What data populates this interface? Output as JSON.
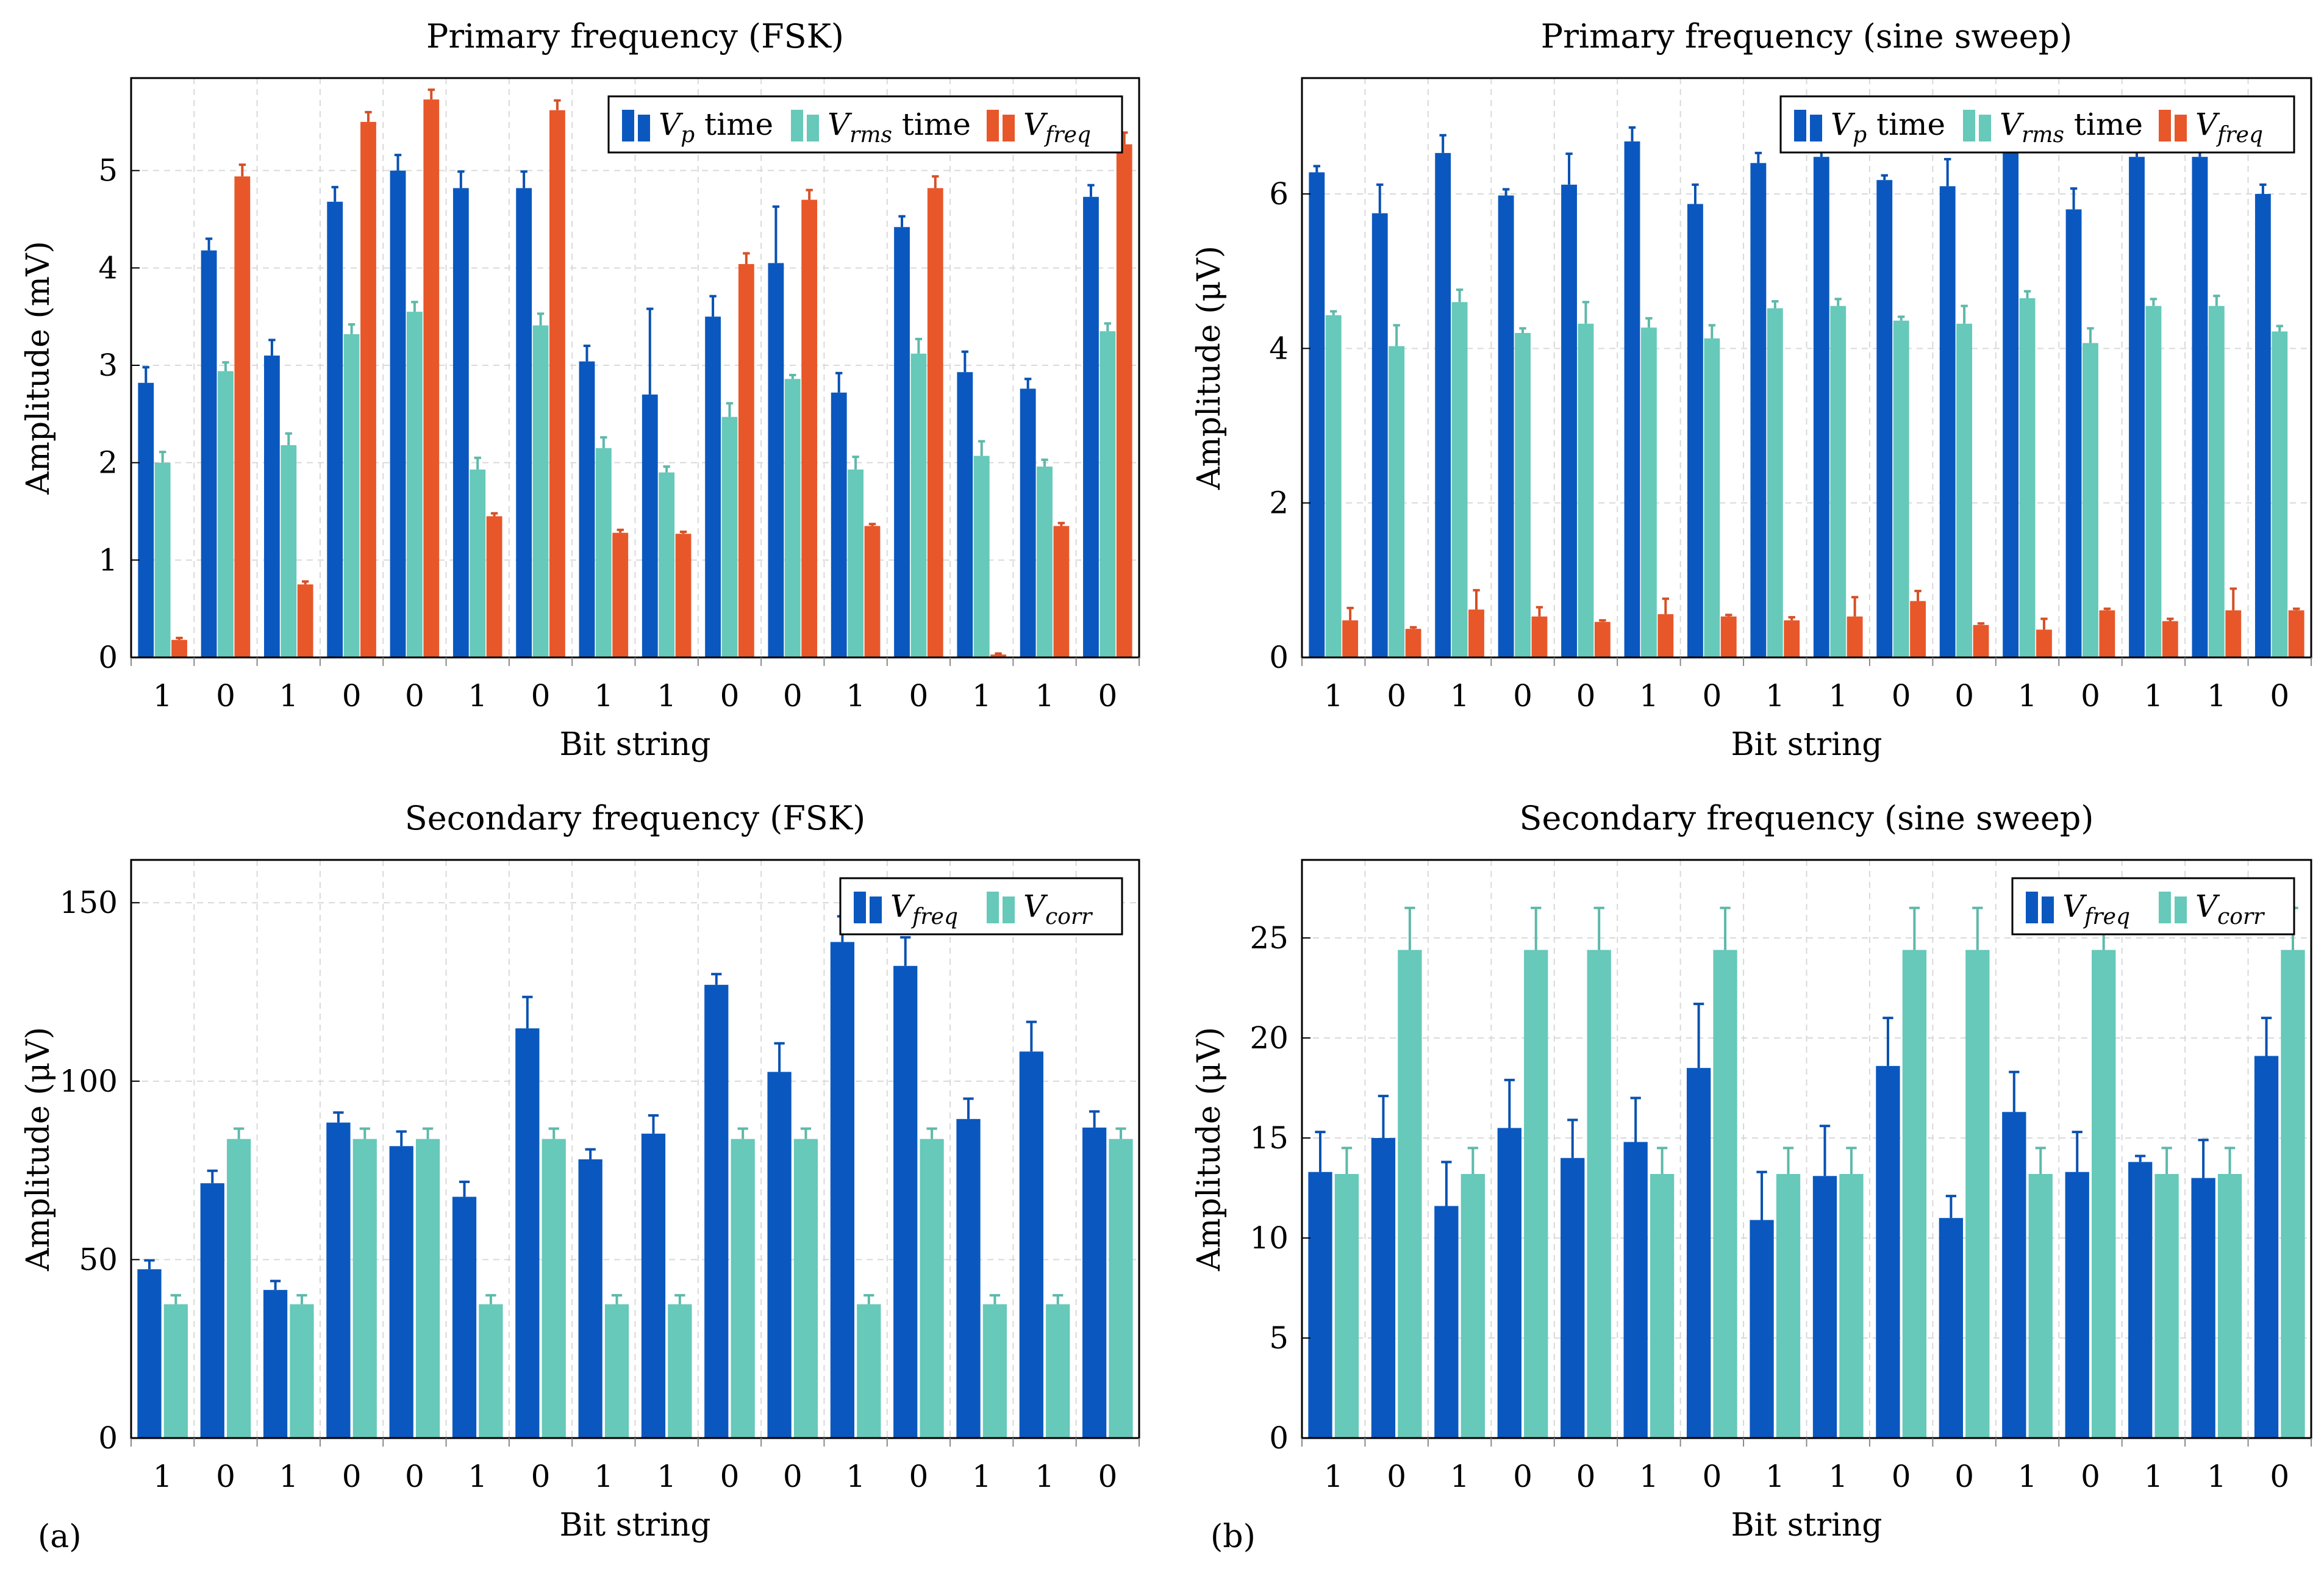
{
  "panel_labels": {
    "a": "(a)",
    "b": "(b)"
  },
  "colors": {
    "vp": "#0a58bf",
    "vrms": "#66c9b9",
    "vfreq_red": "#e8572a",
    "vfreq_blue": "#0a58bf",
    "vcorr": "#66c9b9"
  },
  "chart_data": [
    {
      "type": "bar",
      "title": "Primary frequency (FSK)",
      "xlabel": "Bit string",
      "ylabel": "Amplitude (mV)",
      "ylim": [
        0,
        5.95
      ],
      "yticks": [
        0,
        1,
        2,
        3,
        4,
        5
      ],
      "grid": true,
      "legend_position": "top-right",
      "categories": [
        "1",
        "0",
        "1",
        "0",
        "0",
        "1",
        "0",
        "1",
        "1",
        "0",
        "0",
        "1",
        "0",
        "1",
        "1",
        "0"
      ],
      "series": [
        {
          "name": "Vp time",
          "legend_main": "V",
          "legend_sub": "p",
          "legend_suffix": " time",
          "color_key": "vp",
          "values": [
            2.82,
            4.18,
            3.1,
            4.68,
            5.0,
            4.82,
            4.82,
            3.04,
            2.7,
            3.5,
            4.05,
            2.72,
            4.42,
            2.93,
            2.76,
            4.73
          ],
          "errors": [
            0.16,
            0.12,
            0.16,
            0.15,
            0.16,
            0.17,
            0.17,
            0.16,
            0.88,
            0.21,
            0.58,
            0.2,
            0.11,
            0.21,
            0.1,
            0.12
          ]
        },
        {
          "name": "Vrms time",
          "legend_main": "V",
          "legend_sub": "rms",
          "legend_suffix": " time",
          "color_key": "vrms",
          "values": [
            2.0,
            2.94,
            2.18,
            3.32,
            3.55,
            1.93,
            3.41,
            2.15,
            1.9,
            2.47,
            2.86,
            1.93,
            3.12,
            2.07,
            1.96,
            3.35
          ],
          "errors": [
            0.11,
            0.09,
            0.12,
            0.1,
            0.1,
            0.12,
            0.12,
            0.11,
            0.06,
            0.14,
            0.04,
            0.13,
            0.15,
            0.15,
            0.07,
            0.08
          ]
        },
        {
          "name": "Vfreq",
          "legend_main": "V",
          "legend_sub": "freq",
          "legend_suffix": "",
          "color_key": "vfreq_red",
          "values": [
            0.18,
            4.94,
            0.75,
            5.5,
            5.73,
            1.45,
            5.62,
            1.28,
            1.27,
            4.04,
            4.7,
            1.35,
            4.82,
            0.03,
            1.35,
            5.27
          ],
          "errors": [
            0.02,
            0.12,
            0.03,
            0.1,
            0.1,
            0.03,
            0.1,
            0.03,
            0.02,
            0.11,
            0.1,
            0.02,
            0.12,
            0.01,
            0.03,
            0.12
          ]
        }
      ]
    },
    {
      "type": "bar",
      "title": "Primary frequency (sine sweep)",
      "xlabel": "Bit string",
      "ylabel": "Amplitude (μV)",
      "ylim": [
        0,
        7.5
      ],
      "yticks": [
        0,
        2,
        4,
        6
      ],
      "grid": true,
      "legend_position": "top-right",
      "categories": [
        "1",
        "0",
        "1",
        "0",
        "0",
        "1",
        "0",
        "1",
        "1",
        "0",
        "0",
        "1",
        "0",
        "1",
        "1",
        "0"
      ],
      "series": [
        {
          "name": "Vp time",
          "legend_main": "V",
          "legend_sub": "p",
          "legend_suffix": " time",
          "color_key": "vp",
          "values": [
            6.28,
            5.75,
            6.53,
            5.98,
            6.12,
            6.68,
            5.87,
            6.4,
            6.48,
            6.18,
            6.1,
            6.6,
            5.8,
            6.48,
            6.48,
            6.0
          ],
          "errors": [
            0.08,
            0.37,
            0.23,
            0.08,
            0.4,
            0.18,
            0.25,
            0.13,
            0.12,
            0.06,
            0.35,
            0.13,
            0.27,
            0.13,
            0.13,
            0.12
          ]
        },
        {
          "name": "Vrms time",
          "legend_main": "V",
          "legend_sub": "rms",
          "legend_suffix": " time",
          "color_key": "vrms",
          "values": [
            4.43,
            4.03,
            4.6,
            4.2,
            4.32,
            4.27,
            4.13,
            4.52,
            4.55,
            4.36,
            4.32,
            4.65,
            4.07,
            4.55,
            4.55,
            4.22
          ],
          "errors": [
            0.05,
            0.27,
            0.16,
            0.06,
            0.28,
            0.12,
            0.17,
            0.09,
            0.09,
            0.05,
            0.23,
            0.09,
            0.19,
            0.09,
            0.13,
            0.07
          ]
        },
        {
          "name": "Vfreq",
          "legend_main": "V",
          "legend_sub": "freq",
          "legend_suffix": "",
          "color_key": "vfreq_red",
          "values": [
            0.48,
            0.37,
            0.62,
            0.53,
            0.46,
            0.56,
            0.53,
            0.48,
            0.53,
            0.73,
            0.42,
            0.36,
            0.61,
            0.47,
            0.61,
            0.61
          ],
          "errors": [
            0.16,
            0.02,
            0.25,
            0.12,
            0.02,
            0.2,
            0.02,
            0.04,
            0.25,
            0.13,
            0.02,
            0.14,
            0.02,
            0.03,
            0.28,
            0.02
          ]
        }
      ]
    },
    {
      "type": "bar",
      "title": "Secondary frequency (FSK)",
      "xlabel": "Bit string",
      "ylabel": "Amplitude (μV)",
      "ylim": [
        0,
        162
      ],
      "yticks": [
        0,
        50,
        100,
        150
      ],
      "grid": true,
      "legend_position": "top-right",
      "categories": [
        "1",
        "0",
        "1",
        "0",
        "0",
        "1",
        "0",
        "1",
        "1",
        "0",
        "0",
        "1",
        "0",
        "1",
        "1",
        "0"
      ],
      "series": [
        {
          "name": "Vfreq",
          "legend_main": "V",
          "legend_sub": "freq",
          "legend_suffix": "",
          "color_key": "vfreq_blue",
          "values": [
            47.3,
            71.4,
            41.5,
            88.4,
            81.8,
            67.6,
            114.8,
            78.1,
            85.3,
            127.0,
            102.6,
            139.0,
            132.3,
            89.4,
            108.3,
            87.0
          ],
          "errors": [
            2.5,
            3.5,
            2.5,
            2.8,
            4.1,
            4.2,
            8.8,
            2.8,
            5.1,
            3.0,
            8.0,
            7.2,
            8.0,
            5.7,
            8.3,
            4.5
          ]
        },
        {
          "name": "Vcorr",
          "legend_main": "V",
          "legend_sub": "corr",
          "legend_suffix": "",
          "color_key": "vcorr",
          "values": [
            37.5,
            83.8,
            37.5,
            83.8,
            83.8,
            37.5,
            83.8,
            37.5,
            37.5,
            83.8,
            83.8,
            37.5,
            83.8,
            37.5,
            37.5,
            83.8
          ],
          "errors": [
            2.5,
            2.9,
            2.5,
            2.9,
            2.9,
            2.5,
            2.9,
            2.5,
            2.5,
            2.9,
            2.9,
            2.5,
            2.9,
            2.5,
            2.5,
            2.9
          ]
        }
      ]
    },
    {
      "type": "bar",
      "title": "Secondary frequency (sine sweep)",
      "xlabel": "Bit string",
      "ylabel": "Amplitude (μV)",
      "ylim": [
        0,
        28.9
      ],
      "yticks": [
        0,
        5,
        10,
        15,
        20,
        25
      ],
      "grid": true,
      "legend_position": "top-right",
      "categories": [
        "1",
        "0",
        "1",
        "0",
        "0",
        "1",
        "0",
        "1",
        "1",
        "0",
        "0",
        "1",
        "0",
        "1",
        "1",
        "0"
      ],
      "series": [
        {
          "name": "Vfreq",
          "legend_main": "V",
          "legend_sub": "freq",
          "legend_suffix": "",
          "color_key": "vfreq_blue",
          "values": [
            13.3,
            15.0,
            11.6,
            15.5,
            14.0,
            14.8,
            18.5,
            10.9,
            13.1,
            18.6,
            11.0,
            16.3,
            13.3,
            13.8,
            13.0,
            19.1
          ],
          "errors": [
            2.0,
            2.1,
            2.2,
            2.4,
            1.9,
            2.2,
            3.2,
            2.4,
            2.5,
            2.4,
            1.1,
            2.0,
            2.0,
            0.3,
            1.9,
            1.9
          ]
        },
        {
          "name": "Vcorr",
          "legend_main": "V",
          "legend_sub": "corr",
          "legend_suffix": "",
          "color_key": "vcorr",
          "values": [
            13.2,
            24.4,
            13.2,
            24.4,
            24.4,
            13.2,
            24.4,
            13.2,
            13.2,
            24.4,
            24.4,
            13.2,
            24.4,
            13.2,
            13.2,
            24.4
          ],
          "errors": [
            1.3,
            2.1,
            1.3,
            2.1,
            2.1,
            1.3,
            2.1,
            1.3,
            1.3,
            2.1,
            2.1,
            1.3,
            2.1,
            1.3,
            1.3,
            2.1
          ]
        }
      ]
    }
  ]
}
